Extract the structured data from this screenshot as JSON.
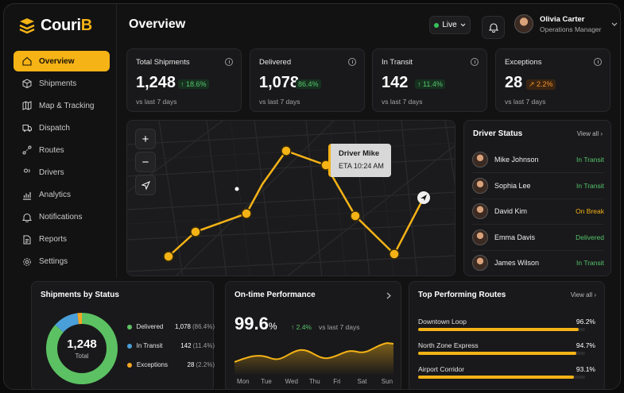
{
  "brand": {
    "name_prefix": "Couri",
    "name_suffix": "B",
    "accent": "#f5b316"
  },
  "sidebar": {
    "items": [
      {
        "label": "Overview",
        "icon": "home-icon",
        "active": true
      },
      {
        "label": "Shipments",
        "icon": "box-icon"
      },
      {
        "label": "Map & Tracking",
        "icon": "map-icon"
      },
      {
        "label": "Dispatch",
        "icon": "truck-icon"
      },
      {
        "label": "Routes",
        "icon": "route-icon"
      },
      {
        "label": "Drivers",
        "icon": "users-icon"
      },
      {
        "label": "Analytics",
        "icon": "chart-icon"
      },
      {
        "label": "Notifications",
        "icon": "bell-icon"
      },
      {
        "label": "Reports",
        "icon": "document-icon"
      },
      {
        "label": "Settings",
        "icon": "gear-icon"
      }
    ]
  },
  "header": {
    "title": "Overview",
    "live_label": "Live",
    "user": {
      "name": "Olivia Carter",
      "role": "Operations Manager"
    }
  },
  "stats": [
    {
      "label": "Total Shipments",
      "value": "1,248",
      "delta": "↑ 18.6%",
      "trend": "up",
      "sub": "vs last 7 days"
    },
    {
      "label": "Delivered",
      "value": "1,078",
      "delta": "86.4%",
      "trend": "up",
      "sub": "vs last 7 days"
    },
    {
      "label": "In Transit",
      "value": "142",
      "delta": "↑ 11.4%",
      "trend": "up",
      "sub": "vs last 7 days"
    },
    {
      "label": "Exceptions",
      "value": "28",
      "delta": "↗ 2.2%",
      "trend": "warn",
      "sub": "vs last 7 days"
    }
  ],
  "map": {
    "tooltip": {
      "driver": "Driver Mike",
      "eta": "ETA 10:24 AM"
    }
  },
  "driver_status": {
    "title": "Driver Status",
    "view_all": "View all",
    "drivers": [
      {
        "name": "Mike Johnson",
        "status": "In Transit",
        "color": "#56c46b"
      },
      {
        "name": "Sophia Lee",
        "status": "In Transit",
        "color": "#56c46b"
      },
      {
        "name": "David Kim",
        "status": "On Break",
        "color": "#f5b316"
      },
      {
        "name": "Emma Davis",
        "status": "Delivered",
        "color": "#56c46b"
      },
      {
        "name": "James Wilson",
        "status": "In Transit",
        "color": "#56c46b"
      }
    ]
  },
  "shipments_by_status": {
    "title": "Shipments by Status",
    "total_value": "1,248",
    "total_label": "Total",
    "segments": [
      {
        "label": "Delivered",
        "value": "1,078",
        "pct": "(86.4%)",
        "fraction": 0.864,
        "color": "#5cc163"
      },
      {
        "label": "In Transit",
        "value": "142",
        "pct": "(11.4%)",
        "fraction": 0.114,
        "color": "#4a9fd8"
      },
      {
        "label": "Exceptions",
        "value": "28",
        "pct": "(2.2%)",
        "fraction": 0.022,
        "color": "#f5a524"
      }
    ]
  },
  "on_time": {
    "title": "On-time Performance",
    "value": "99.6",
    "unit": "%",
    "delta": "↑ 2.4%",
    "sub": "vs last 7 days",
    "days": [
      "Mon",
      "Tue",
      "Wed",
      "Thu",
      "Fri",
      "Sat",
      "Sun"
    ]
  },
  "top_routes": {
    "title": "Top Performing Routes",
    "view_all": "View all",
    "routes": [
      {
        "name": "Downtown Loop",
        "value": "96.2%",
        "fraction": 0.962
      },
      {
        "name": "North Zone Express",
        "value": "94.7%",
        "fraction": 0.947
      },
      {
        "name": "Airport Corridor",
        "value": "93.1%",
        "fraction": 0.931
      }
    ]
  }
}
